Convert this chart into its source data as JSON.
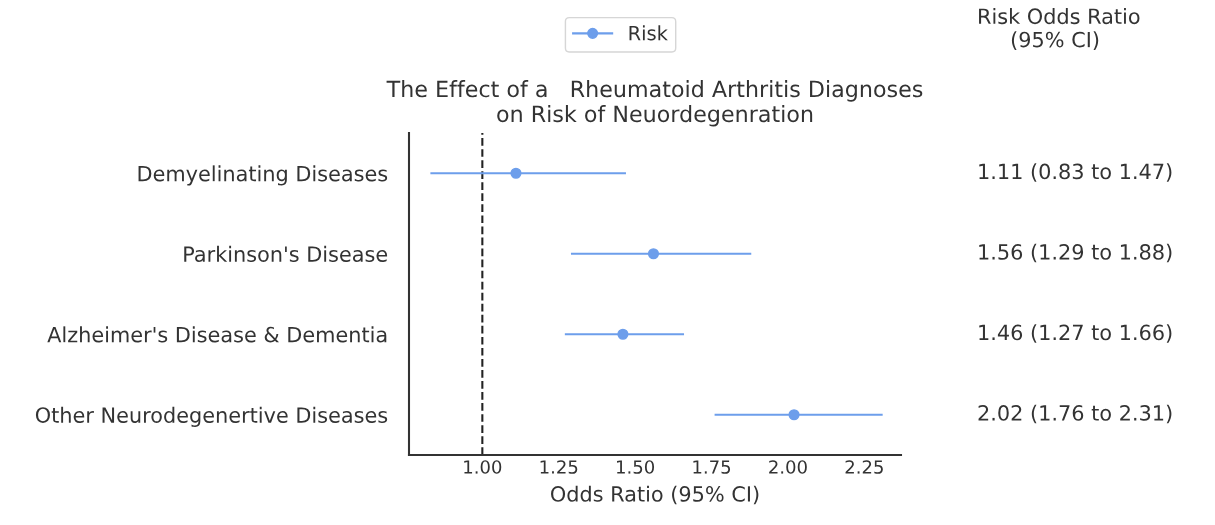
{
  "chart_data": {
    "type": "scatter",
    "orientation": "horizontal",
    "title": "The Effect of a   Rheumatoid Arthritis Diagnoses\non Risk of Neuordegenration",
    "xlabel": "Odds Ratio (95% CI)",
    "categories": [
      "Demyelinating Diseases",
      "Parkinson's Disease",
      "Alzheimer's Disease & Dementia",
      "Other Neurodegenertive Diseases"
    ],
    "series": [
      {
        "name": "Risk",
        "color": "#6d9eeb",
        "values": [
          1.11,
          1.56,
          1.46,
          2.02
        ],
        "errors": [
          [
            0.83,
            1.47
          ],
          [
            1.29,
            1.88
          ],
          [
            1.27,
            1.66
          ],
          [
            1.76,
            2.31
          ]
        ],
        "value_labels": [
          "1.11 (0.83 to 1.47)",
          "1.56 (1.29 to 1.88)",
          "1.46 (1.27 to 1.66)",
          "2.02 (1.76 to 2.31)"
        ]
      }
    ],
    "xlim": [
      0.76,
      2.37
    ],
    "xticks": [
      {
        "value": 1.0,
        "label": "1.00"
      },
      {
        "value": 1.25,
        "label": "1.25"
      },
      {
        "value": 1.5,
        "label": "1.50"
      },
      {
        "value": 1.75,
        "label": "1.75"
      },
      {
        "value": 2.0,
        "label": "2.00"
      },
      {
        "value": 2.25,
        "label": "2.25"
      }
    ],
    "ref_lines": [
      {
        "axis": "x",
        "value": 1.0,
        "color": "#222222",
        "line_style": "dashed"
      }
    ],
    "annotations": [
      "Risk Odds Ratio\n     (95% CI)"
    ],
    "marker": "circle",
    "grid": false,
    "legend": "top"
  }
}
